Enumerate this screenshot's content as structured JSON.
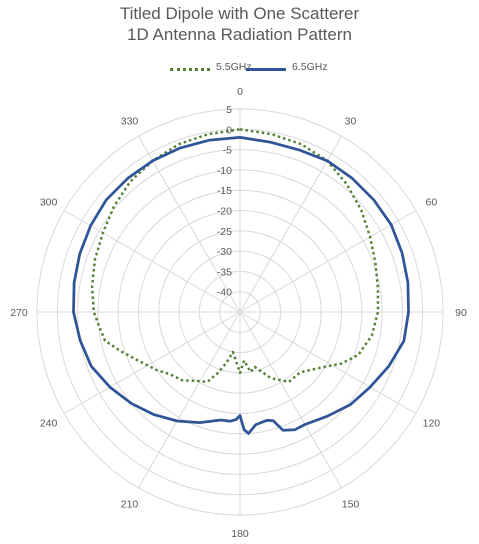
{
  "chart_data": {
    "type": "radar",
    "title": "Titled Dipole with One Scatterer",
    "subtitle": "1D Antenna Radiation Pattern",
    "angles": [
      0,
      30,
      60,
      90,
      120,
      150,
      180,
      210,
      240,
      270,
      300,
      330
    ],
    "radial_ticks": [
      "5",
      "0",
      "-5",
      "-10",
      "-15",
      "-20",
      "-25",
      "-30",
      "-35",
      "-40"
    ],
    "rlim": [
      -45,
      5
    ],
    "grid": true,
    "legend_position": "top",
    "series": [
      {
        "name": "5.5GHz",
        "style": "dotted",
        "color": "#548235",
        "points": [
          [
            0,
            0
          ],
          [
            10,
            -0.5
          ],
          [
            20,
            -1
          ],
          [
            30,
            -2
          ],
          [
            40,
            -4
          ],
          [
            50,
            -6
          ],
          [
            60,
            -8
          ],
          [
            70,
            -9.5
          ],
          [
            80,
            -10.5
          ],
          [
            90,
            -11
          ],
          [
            100,
            -12
          ],
          [
            110,
            -14
          ],
          [
            117,
            -17
          ],
          [
            125,
            -21
          ],
          [
            135,
            -24
          ],
          [
            145,
            -24
          ],
          [
            155,
            -27
          ],
          [
            165,
            -31
          ],
          [
            170,
            -30
          ],
          [
            175,
            -33
          ],
          [
            180,
            -30
          ],
          [
            185,
            -33
          ],
          [
            190,
            -35
          ],
          [
            195,
            -32
          ],
          [
            200,
            -29
          ],
          [
            205,
            -26
          ],
          [
            212,
            -25
          ],
          [
            220,
            -23
          ],
          [
            228,
            -22
          ],
          [
            235,
            -20
          ],
          [
            245,
            -17
          ],
          [
            252,
            -14
          ],
          [
            258,
            -11
          ],
          [
            265,
            -10
          ],
          [
            270,
            -9
          ],
          [
            280,
            -8
          ],
          [
            290,
            -7
          ],
          [
            300,
            -6
          ],
          [
            310,
            -4.5
          ],
          [
            320,
            -3
          ],
          [
            330,
            -2
          ],
          [
            340,
            -1
          ],
          [
            350,
            -0.5
          ],
          [
            360,
            0
          ]
        ]
      },
      {
        "name": "6.5GHz",
        "style": "solid",
        "color": "#2F5597",
        "points": [
          [
            0,
            -2
          ],
          [
            10,
            -2.5
          ],
          [
            20,
            -2.5
          ],
          [
            30,
            -2
          ],
          [
            40,
            -2
          ],
          [
            50,
            -2
          ],
          [
            60,
            -2
          ],
          [
            70,
            -2.5
          ],
          [
            80,
            -3
          ],
          [
            90,
            -3.5
          ],
          [
            100,
            -4
          ],
          [
            110,
            -6
          ],
          [
            120,
            -8
          ],
          [
            130,
            -9.5
          ],
          [
            140,
            -11.5
          ],
          [
            150,
            -13
          ],
          [
            155,
            -13
          ],
          [
            160,
            -14
          ],
          [
            163,
            -17
          ],
          [
            166,
            -17.5
          ],
          [
            172,
            -17
          ],
          [
            176,
            -15
          ],
          [
            178,
            -16
          ],
          [
            180,
            -19.5
          ],
          [
            182,
            -18.5
          ],
          [
            185,
            -18
          ],
          [
            190,
            -18
          ],
          [
            200,
            -16
          ],
          [
            210,
            -14
          ],
          [
            220,
            -12
          ],
          [
            230,
            -10
          ],
          [
            240,
            -8
          ],
          [
            250,
            -6
          ],
          [
            260,
            -5
          ],
          [
            270,
            -4
          ],
          [
            280,
            -3.5
          ],
          [
            290,
            -3
          ],
          [
            300,
            -2.5
          ],
          [
            310,
            -2
          ],
          [
            320,
            -2
          ],
          [
            330,
            -2
          ],
          [
            340,
            -2
          ],
          [
            350,
            -2
          ],
          [
            360,
            -2
          ]
        ]
      }
    ]
  }
}
